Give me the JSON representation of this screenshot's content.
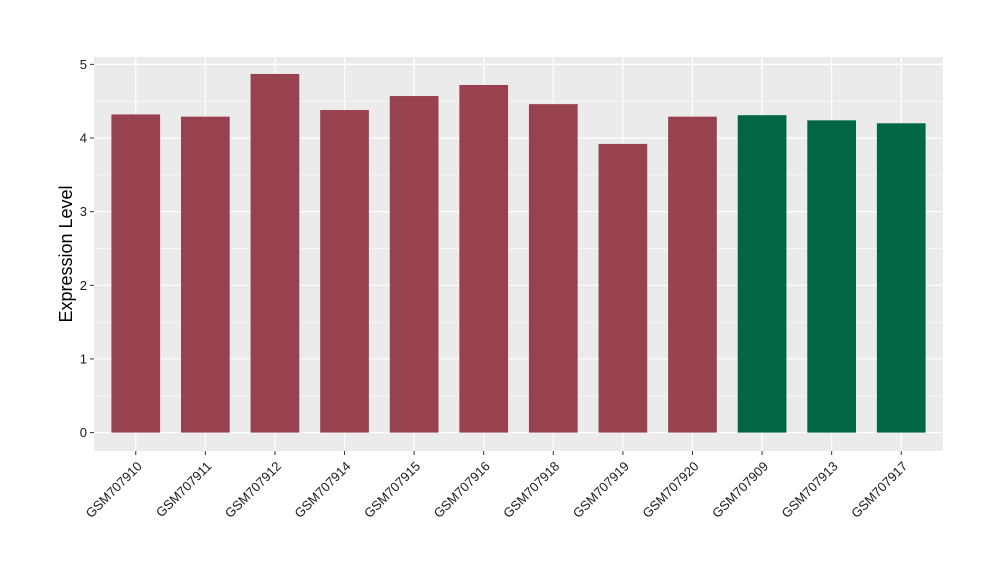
{
  "chart_data": {
    "type": "bar",
    "categories": [
      "GSM707910",
      "GSM707911",
      "GSM707912",
      "GSM707914",
      "GSM707915",
      "GSM707916",
      "GSM707918",
      "GSM707919",
      "GSM707920",
      "GSM707909",
      "GSM707913",
      "GSM707917"
    ],
    "values": [
      4.32,
      4.29,
      4.87,
      4.38,
      4.57,
      4.72,
      4.46,
      3.92,
      4.29,
      4.31,
      4.24,
      4.2
    ],
    "groups": [
      "a",
      "a",
      "a",
      "a",
      "a",
      "a",
      "a",
      "a",
      "a",
      "b",
      "b",
      "b"
    ],
    "colors": {
      "a": "#99424f",
      "b": "#006644"
    },
    "title": "",
    "xlabel": "",
    "ylabel": "Expression Level",
    "ylim": [
      -0.25,
      5.1
    ],
    "yticks": [
      0,
      1,
      2,
      3,
      4,
      5
    ],
    "grid": true,
    "panel_background": "#ebebeb",
    "gridline_color": "#ffffff"
  }
}
